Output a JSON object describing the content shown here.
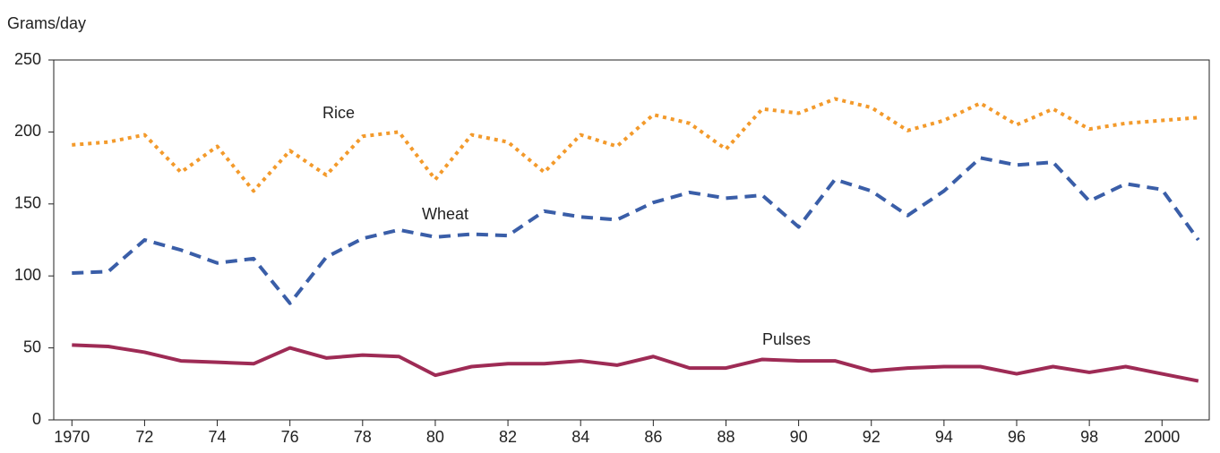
{
  "chart_data": {
    "type": "line",
    "y_label": "Grams/day",
    "x": [
      1970,
      1971,
      1972,
      1973,
      1974,
      1975,
      1976,
      1977,
      1978,
      1979,
      1980,
      1981,
      1982,
      1983,
      1984,
      1985,
      1986,
      1987,
      1988,
      1989,
      1990,
      1991,
      1992,
      1993,
      1994,
      1995,
      1996,
      1997,
      1998,
      1999,
      2000,
      2001
    ],
    "series": [
      {
        "name": "Rice",
        "color": "#f39a2b",
        "style": "dotted",
        "values": [
          191,
          193,
          198,
          172,
          190,
          159,
          187,
          170,
          197,
          200,
          167,
          198,
          193,
          172,
          198,
          190,
          212,
          206,
          188,
          216,
          213,
          223,
          217,
          201,
          208,
          220,
          205,
          216,
          202,
          206,
          208,
          210
        ]
      },
      {
        "name": "Wheat",
        "color": "#3a5ea8",
        "style": "dashed",
        "values": [
          102,
          103,
          125,
          118,
          109,
          112,
          81,
          113,
          126,
          132,
          127,
          129,
          128,
          145,
          141,
          139,
          151,
          158,
          154,
          156,
          134,
          167,
          159,
          142,
          159,
          182,
          177,
          179,
          152,
          164,
          160,
          125
        ]
      },
      {
        "name": "Pulses",
        "color": "#9e2b55",
        "style": "solid",
        "values": [
          52,
          51,
          47,
          41,
          40,
          39,
          50,
          43,
          45,
          44,
          31,
          37,
          39,
          39,
          41,
          38,
          44,
          36,
          36,
          42,
          41,
          41,
          34,
          36,
          37,
          37,
          32,
          37,
          33,
          37,
          32,
          27
        ]
      }
    ],
    "xlim": [
      1969.5,
      2001.3
    ],
    "xticks": [
      1970,
      {
        "value": 1972,
        "label": "72"
      },
      {
        "value": 1974,
        "label": "74"
      },
      {
        "value": 1976,
        "label": "76"
      },
      {
        "value": 1978,
        "label": "78"
      },
      {
        "value": 1980,
        "label": "80"
      },
      {
        "value": 1982,
        "label": "82"
      },
      {
        "value": 1984,
        "label": "84"
      },
      {
        "value": 1986,
        "label": "86"
      },
      {
        "value": 1988,
        "label": "88"
      },
      {
        "value": 1990,
        "label": "90"
      },
      {
        "value": 1992,
        "label": "92"
      },
      {
        "value": 1994,
        "label": "94"
      },
      {
        "value": 1996,
        "label": "96"
      },
      {
        "value": 1998,
        "label": "98"
      },
      2000
    ],
    "ylim": [
      0,
      250
    ],
    "yticks": [
      0,
      50,
      100,
      150,
      200,
      250
    ],
    "grid": false
  }
}
